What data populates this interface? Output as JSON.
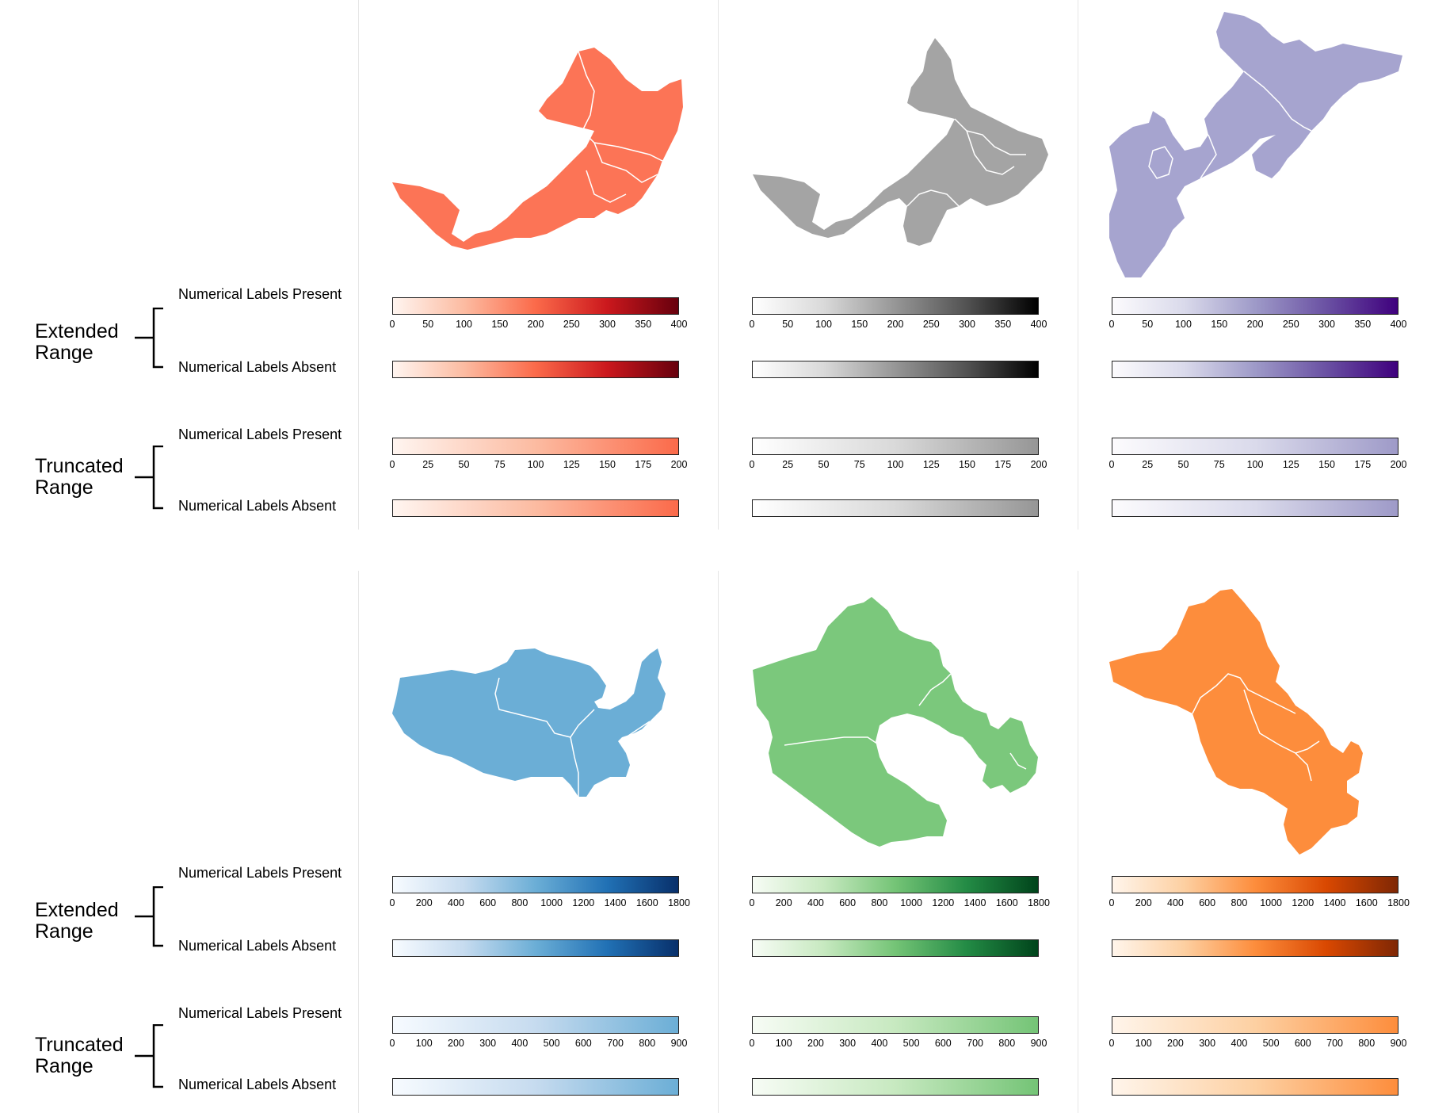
{
  "panels": [
    {
      "rows": [
        {
          "group": "Extended Range",
          "items": [
            {
              "label": "Numerical Labels Present",
              "ticks": [
                "0",
                "50",
                "100",
                "150",
                "200",
                "250",
                "300",
                "350",
                "400"
              ]
            },
            {
              "label": "Numerical Labels Absent",
              "ticks": []
            }
          ]
        },
        {
          "group": "Truncated Range",
          "items": [
            {
              "label": "Numerical Labels Present",
              "ticks": [
                "0",
                "25",
                "50",
                "75",
                "100",
                "125",
                "150",
                "175",
                "200"
              ]
            },
            {
              "label": "Numerical Labels Absent",
              "ticks": []
            }
          ]
        }
      ],
      "maps": [
        {
          "name": "red-region-map",
          "color": "#FC7456",
          "region_shades": [
            "#FC7456",
            "#FA6C4E",
            "#FB7A5C",
            "#F9694B",
            "#FC7456"
          ],
          "scale_full": [
            "#FFF5F0",
            "#FCBBA1",
            "#FB6A4A",
            "#CB181D",
            "#67000D"
          ],
          "scale_half": [
            "#FFF5F0",
            "#FCBBA1",
            "#FB6A4A"
          ]
        },
        {
          "name": "gray-region-map",
          "color": "#A4A4A4",
          "region_shades": [
            "#A7A7A7",
            "#9E9E9E",
            "#8C8C8C",
            "#B3B3B3",
            "#A7A7A7"
          ],
          "scale_full": [
            "#FFFFFF",
            "#D9D9D9",
            "#969696",
            "#525252",
            "#000000"
          ],
          "scale_half": [
            "#FFFFFF",
            "#D9D9D9",
            "#969696"
          ]
        },
        {
          "name": "purple-region-map",
          "color": "#A6A4CF",
          "region_shades": [
            "#A8A6D0",
            "#9C99C8",
            "#7C79B6",
            "#B3B1D6",
            "#A6A4CF"
          ],
          "scale_full": [
            "#FCFBFD",
            "#DADAEB",
            "#9E9AC8",
            "#6A51A3",
            "#3F007D"
          ],
          "scale_half": [
            "#FCFBFD",
            "#DADAEB",
            "#9E9AC8"
          ]
        }
      ]
    },
    {
      "rows": [
        {
          "group": "Extended Range",
          "items": [
            {
              "label": "Numerical Labels Present",
              "ticks": [
                "0",
                "200",
                "400",
                "600",
                "800",
                "1000",
                "1200",
                "1400",
                "1600",
                "1800"
              ]
            },
            {
              "label": "Numerical Labels Absent",
              "ticks": []
            }
          ]
        },
        {
          "group": "Truncated Range",
          "items": [
            {
              "label": "Numerical Labels Present",
              "ticks": [
                "0",
                "100",
                "200",
                "300",
                "400",
                "500",
                "600",
                "700",
                "800",
                "900"
              ]
            },
            {
              "label": "Numerical Labels Absent",
              "ticks": []
            }
          ]
        }
      ],
      "maps": [
        {
          "name": "blue-region-map",
          "color": "#6BAED6",
          "region_shades": [
            "#6BAED6",
            "#6BAED6",
            "#6BAED6",
            "#6BAED6",
            "#6BAED6"
          ],
          "scale_full": [
            "#F7FBFF",
            "#C6DBEF",
            "#6BAED6",
            "#2171B5",
            "#08306B"
          ],
          "scale_half": [
            "#F7FBFF",
            "#C6DBEF",
            "#6BAED6"
          ]
        },
        {
          "name": "green-region-map",
          "color": "#7BC87C",
          "region_shades": [
            "#7BC87C",
            "#7BC87C",
            "#7BC87C",
            "#7BC87C",
            "#7BC87C"
          ],
          "scale_full": [
            "#F7FCF5",
            "#C7E9C0",
            "#74C476",
            "#238B45",
            "#00441B"
          ],
          "scale_half": [
            "#F7FCF5",
            "#C7E9C0",
            "#74C476"
          ]
        },
        {
          "name": "orange-region-map",
          "color": "#FD8D3C",
          "region_shades": [
            "#FD8D3C",
            "#FD8D3C",
            "#FD8D3C",
            "#FD8D3C",
            "#FD8D3C"
          ],
          "scale_full": [
            "#FFF5EB",
            "#FDD0A2",
            "#FD8D3C",
            "#D94801",
            "#7F2704"
          ],
          "scale_half": [
            "#FFF5EB",
            "#FDD0A2",
            "#FD8D3C"
          ]
        }
      ]
    }
  ]
}
